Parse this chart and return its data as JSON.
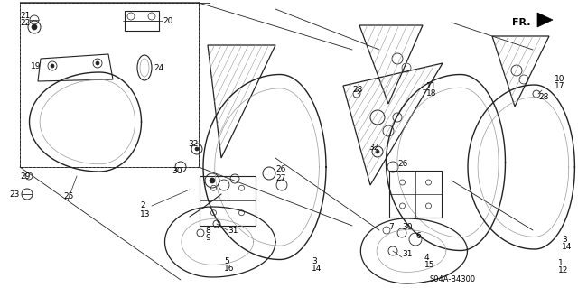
{
  "bg_color": "#ffffff",
  "diagram_code": "S04A-B4300",
  "fr_label": "FR.",
  "line_color": "#222222",
  "light_color": "#999999"
}
